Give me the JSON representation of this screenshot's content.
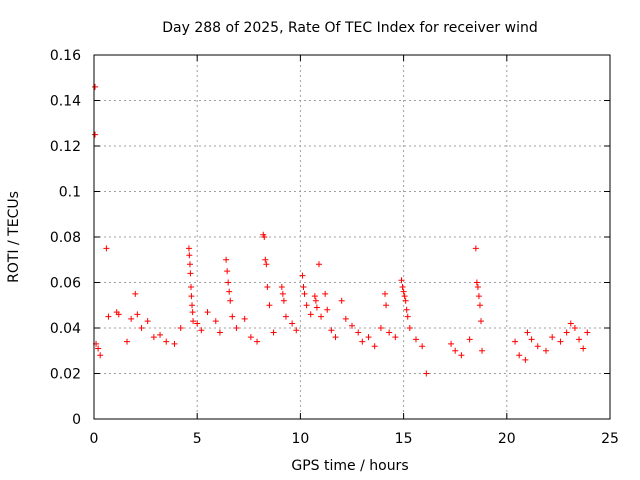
{
  "chart_data": {
    "type": "scatter",
    "title": "Day 288 of 2025, Rate Of TEC Index for receiver wind",
    "xlabel": "GPS time / hours",
    "ylabel": "ROTI / TECUs",
    "xlim": [
      0,
      25
    ],
    "ylim": [
      0,
      0.16
    ],
    "xticks": [
      0,
      5,
      10,
      15,
      20,
      25
    ],
    "xtick_labels": [
      "0",
      "5",
      "10",
      "15",
      "20",
      "25"
    ],
    "yticks": [
      0,
      0.02,
      0.04,
      0.06,
      0.08,
      0.1,
      0.12,
      0.14,
      0.16
    ],
    "ytick_labels": [
      "0",
      "0.02",
      "0.04",
      "0.06",
      "0.08",
      "0.1",
      "0.12",
      "0.14",
      "0.16"
    ],
    "grid": true,
    "marker": "plus",
    "marker_color": "#ff0000",
    "series": [
      {
        "name": "ROTI",
        "points": [
          [
            0.05,
            0.146
          ],
          [
            0.05,
            0.125
          ],
          [
            0.1,
            0.033
          ],
          [
            0.2,
            0.031
          ],
          [
            0.3,
            0.028
          ],
          [
            0.6,
            0.075
          ],
          [
            0.7,
            0.045
          ],
          [
            1.1,
            0.047
          ],
          [
            1.2,
            0.046
          ],
          [
            1.6,
            0.034
          ],
          [
            1.8,
            0.044
          ],
          [
            2.0,
            0.055
          ],
          [
            2.1,
            0.046
          ],
          [
            2.3,
            0.04
          ],
          [
            2.6,
            0.043
          ],
          [
            2.9,
            0.036
          ],
          [
            3.2,
            0.037
          ],
          [
            3.5,
            0.034
          ],
          [
            3.9,
            0.033
          ],
          [
            4.2,
            0.04
          ],
          [
            4.6,
            0.075
          ],
          [
            4.62,
            0.072
          ],
          [
            4.65,
            0.068
          ],
          [
            4.67,
            0.064
          ],
          [
            4.7,
            0.058
          ],
          [
            4.72,
            0.054
          ],
          [
            4.75,
            0.05
          ],
          [
            4.78,
            0.047
          ],
          [
            4.8,
            0.043
          ],
          [
            5.0,
            0.042
          ],
          [
            5.2,
            0.039
          ],
          [
            5.5,
            0.047
          ],
          [
            5.9,
            0.043
          ],
          [
            6.1,
            0.038
          ],
          [
            6.4,
            0.07
          ],
          [
            6.45,
            0.065
          ],
          [
            6.5,
            0.06
          ],
          [
            6.55,
            0.056
          ],
          [
            6.6,
            0.052
          ],
          [
            6.7,
            0.045
          ],
          [
            6.9,
            0.04
          ],
          [
            7.3,
            0.044
          ],
          [
            7.6,
            0.036
          ],
          [
            7.9,
            0.034
          ],
          [
            8.2,
            0.081
          ],
          [
            8.25,
            0.08
          ],
          [
            8.3,
            0.07
          ],
          [
            8.35,
            0.068
          ],
          [
            8.4,
            0.058
          ],
          [
            8.5,
            0.05
          ],
          [
            8.7,
            0.038
          ],
          [
            9.1,
            0.058
          ],
          [
            9.15,
            0.055
          ],
          [
            9.2,
            0.052
          ],
          [
            9.3,
            0.045
          ],
          [
            9.6,
            0.042
          ],
          [
            9.8,
            0.039
          ],
          [
            10.1,
            0.063
          ],
          [
            10.15,
            0.058
          ],
          [
            10.2,
            0.055
          ],
          [
            10.3,
            0.05
          ],
          [
            10.5,
            0.046
          ],
          [
            10.7,
            0.054
          ],
          [
            10.75,
            0.052
          ],
          [
            10.8,
            0.049
          ],
          [
            10.9,
            0.068
          ],
          [
            11.0,
            0.045
          ],
          [
            11.2,
            0.055
          ],
          [
            11.3,
            0.048
          ],
          [
            11.5,
            0.039
          ],
          [
            11.7,
            0.036
          ],
          [
            12.0,
            0.052
          ],
          [
            12.2,
            0.044
          ],
          [
            12.5,
            0.041
          ],
          [
            12.8,
            0.038
          ],
          [
            13.0,
            0.034
          ],
          [
            13.3,
            0.036
          ],
          [
            13.6,
            0.032
          ],
          [
            13.9,
            0.04
          ],
          [
            14.1,
            0.055
          ],
          [
            14.15,
            0.05
          ],
          [
            14.3,
            0.038
          ],
          [
            14.6,
            0.036
          ],
          [
            14.9,
            0.061
          ],
          [
            14.95,
            0.058
          ],
          [
            15.0,
            0.056
          ],
          [
            15.05,
            0.054
          ],
          [
            15.1,
            0.052
          ],
          [
            15.15,
            0.048
          ],
          [
            15.2,
            0.045
          ],
          [
            15.3,
            0.04
          ],
          [
            15.6,
            0.035
          ],
          [
            15.9,
            0.032
          ],
          [
            16.1,
            0.02
          ],
          [
            17.3,
            0.033
          ],
          [
            17.5,
            0.03
          ],
          [
            17.8,
            0.028
          ],
          [
            18.2,
            0.035
          ],
          [
            18.5,
            0.075
          ],
          [
            18.55,
            0.06
          ],
          [
            18.6,
            0.058
          ],
          [
            18.65,
            0.054
          ],
          [
            18.7,
            0.05
          ],
          [
            18.75,
            0.043
          ],
          [
            18.8,
            0.03
          ],
          [
            20.4,
            0.034
          ],
          [
            20.6,
            0.028
          ],
          [
            20.9,
            0.026
          ],
          [
            21.0,
            0.038
          ],
          [
            21.2,
            0.035
          ],
          [
            21.5,
            0.032
          ],
          [
            21.9,
            0.03
          ],
          [
            22.2,
            0.036
          ],
          [
            22.6,
            0.034
          ],
          [
            22.9,
            0.038
          ],
          [
            23.1,
            0.042
          ],
          [
            23.3,
            0.04
          ],
          [
            23.5,
            0.035
          ],
          [
            23.7,
            0.031
          ],
          [
            23.9,
            0.038
          ]
        ]
      }
    ]
  }
}
